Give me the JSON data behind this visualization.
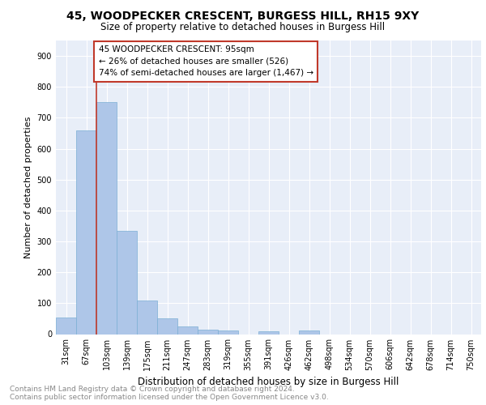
{
  "title": "45, WOODPECKER CRESCENT, BURGESS HILL, RH15 9XY",
  "subtitle": "Size of property relative to detached houses in Burgess Hill",
  "xlabel": "Distribution of detached houses by size in Burgess Hill",
  "ylabel": "Number of detached properties",
  "bins": [
    "31sqm",
    "67sqm",
    "103sqm",
    "139sqm",
    "175sqm",
    "211sqm",
    "247sqm",
    "283sqm",
    "319sqm",
    "355sqm",
    "391sqm",
    "426sqm",
    "462sqm",
    "498sqm",
    "534sqm",
    "570sqm",
    "606sqm",
    "642sqm",
    "678sqm",
    "714sqm",
    "750sqm"
  ],
  "values": [
    55,
    660,
    750,
    335,
    110,
    52,
    25,
    15,
    11,
    0,
    8,
    0,
    11,
    0,
    0,
    0,
    0,
    0,
    0,
    0,
    0
  ],
  "bar_color": "#aec6e8",
  "bar_edge_color": "#7bafd4",
  "vline_color": "#c0392b",
  "annotation_text": "45 WOODPECKER CRESCENT: 95sqm\n← 26% of detached houses are smaller (526)\n74% of semi-detached houses are larger (1,467) →",
  "annotation_box_color": "#ffffff",
  "annotation_box_edge_color": "#c0392b",
  "ylim": [
    0,
    950
  ],
  "yticks": [
    0,
    100,
    200,
    300,
    400,
    500,
    600,
    700,
    800,
    900
  ],
  "background_color": "#e8eef8",
  "grid_color": "#ffffff",
  "footer_line1": "Contains HM Land Registry data © Crown copyright and database right 2024.",
  "footer_line2": "Contains public sector information licensed under the Open Government Licence v3.0.",
  "title_fontsize": 10,
  "subtitle_fontsize": 8.5,
  "xlabel_fontsize": 8.5,
  "ylabel_fontsize": 8,
  "tick_fontsize": 7,
  "annotation_fontsize": 7.5,
  "footer_fontsize": 6.5
}
